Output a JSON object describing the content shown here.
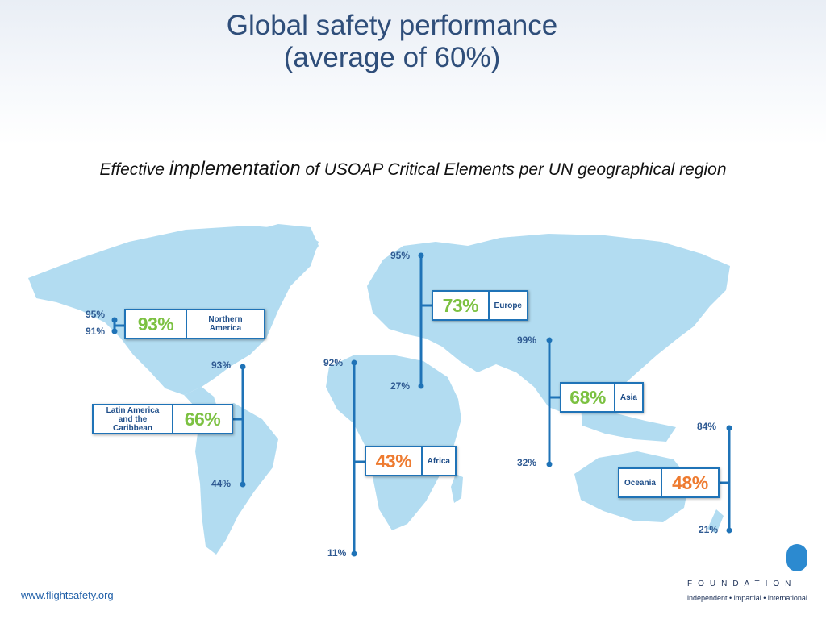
{
  "slide": {
    "title_line1": "Global safety performance",
    "title_line2": "(average of 60%)",
    "subtitle_pre": "Effective ",
    "subtitle_big": "implementation",
    "subtitle_post": " of USOAP Critical Elements per UN geographical region",
    "footer_url": "www.flightsafety.org",
    "brand_text": "FOUNDATION",
    "tagline": "independent • impartial • international"
  },
  "colors": {
    "map_land": "#b2dcf1",
    "accent_blue": "#1f73b7",
    "label_blue": "#2f5a92",
    "above_avg_green": "#7cc142",
    "below_avg_orange": "#ee7b30"
  },
  "chart_data": {
    "type": "range-on-map",
    "global_average_pct": 60,
    "regions": [
      {
        "name": "Northern America",
        "average_pct": 93,
        "max_pct": 95,
        "min_pct": 91,
        "average_label": "93%",
        "max_label": "95%",
        "min_label": "91%",
        "color": "green"
      },
      {
        "name": "Latin America and the Caribbean",
        "name_line1": "Latin America",
        "name_line2": "and the Caribbean",
        "average_pct": 66,
        "max_pct": 93,
        "min_pct": 44,
        "average_label": "66%",
        "max_label": "93%",
        "min_label": "44%",
        "color": "green"
      },
      {
        "name": "Europe",
        "average_pct": 73,
        "max_pct": 95,
        "min_pct": 27,
        "average_label": "73%",
        "max_label": "95%",
        "min_label": "27%",
        "color": "green"
      },
      {
        "name": "Africa",
        "average_pct": 43,
        "max_pct": 92,
        "min_pct": 11,
        "average_label": "43%",
        "max_label": "92%",
        "min_label": "11%",
        "color": "orange"
      },
      {
        "name": "Asia",
        "average_pct": 68,
        "max_pct": 99,
        "min_pct": 32,
        "average_label": "68%",
        "max_label": "99%",
        "min_label": "32%",
        "color": "green"
      },
      {
        "name": "Oceania",
        "average_pct": 48,
        "max_pct": 84,
        "min_pct": 21,
        "average_label": "48%",
        "max_label": "84%",
        "min_label": "21%",
        "color": "orange"
      }
    ]
  }
}
